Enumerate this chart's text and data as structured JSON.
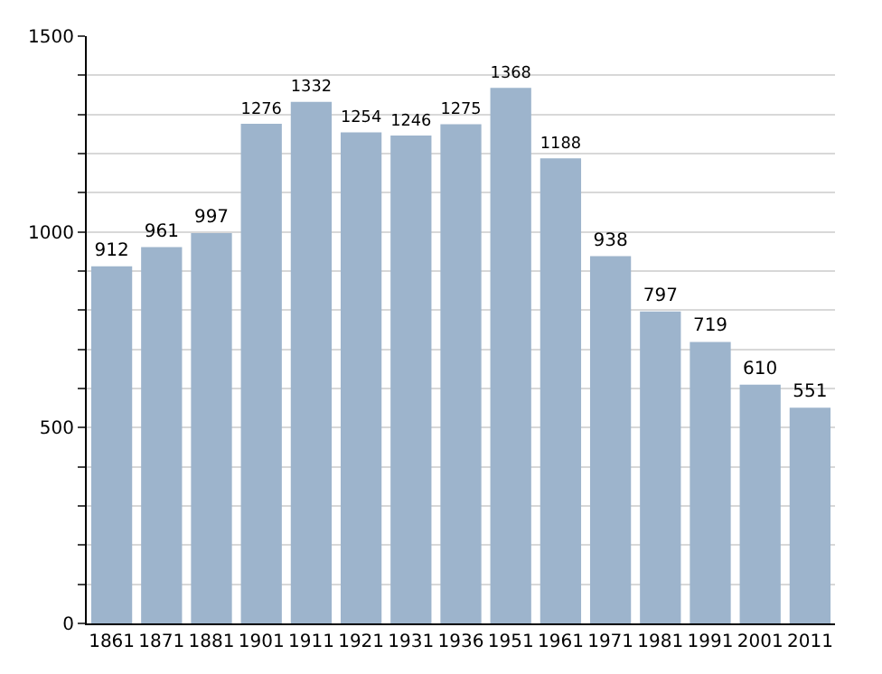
{
  "chart_data": {
    "type": "bar",
    "categories": [
      "1861",
      "1871",
      "1881",
      "1901",
      "1911",
      "1921",
      "1931",
      "1936",
      "1951",
      "1961",
      "1971",
      "1981",
      "1991",
      "2001",
      "2011"
    ],
    "values": [
      912,
      961,
      997,
      1276,
      1332,
      1254,
      1246,
      1275,
      1368,
      1188,
      938,
      797,
      719,
      610,
      551
    ],
    "color": "#9db4cc",
    "data_labels": true,
    "ylim": [
      0,
      1500
    ],
    "yticks": [
      0,
      {
        "value": 100,
        "label": null
      },
      {
        "value": 200,
        "label": null
      },
      {
        "value": 300,
        "label": null
      },
      {
        "value": 400,
        "label": null
      },
      500,
      {
        "value": 600,
        "label": null
      },
      {
        "value": 700,
        "label": null
      },
      {
        "value": 800,
        "label": null
      },
      {
        "value": 900,
        "label": null
      },
      1000,
      {
        "value": 1100,
        "label": null
      },
      {
        "value": 1200,
        "label": null
      },
      {
        "value": 1300,
        "label": null
      },
      {
        "value": 1400,
        "label": null
      },
      1500
    ],
    "grid": "y"
  }
}
